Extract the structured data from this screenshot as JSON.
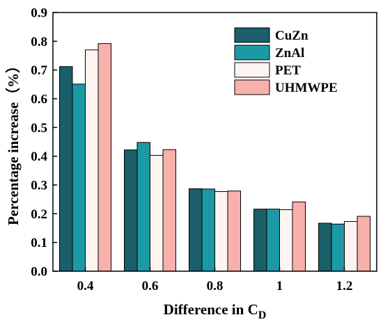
{
  "chart_data": {
    "type": "bar",
    "title": "",
    "xlabel": "Difference in C",
    "xlabel_subscript": "D",
    "ylabel": "Percentage increase（%）",
    "categories": [
      "0.4",
      "0.6",
      "0.8",
      "1",
      "1.2"
    ],
    "ylim": [
      0,
      0.9
    ],
    "yticks": [
      "0.0",
      "0.1",
      "0.2",
      "0.3",
      "0.4",
      "0.5",
      "0.6",
      "0.7",
      "0.8",
      "0.9"
    ],
    "grid": false,
    "legend_position": "top-right",
    "series": [
      {
        "name": "CuZn",
        "color": "#1a5f6a",
        "values": [
          0.712,
          0.422,
          0.287,
          0.216,
          0.167
        ]
      },
      {
        "name": "ZnAl",
        "color": "#1b9aa5",
        "values": [
          0.651,
          0.448,
          0.286,
          0.216,
          0.164
        ]
      },
      {
        "name": "PET",
        "color": "#fdf4f2",
        "values": [
          0.77,
          0.403,
          0.277,
          0.214,
          0.173
        ]
      },
      {
        "name": "UHMWPE",
        "color": "#f7b0ab",
        "values": [
          0.792,
          0.423,
          0.279,
          0.241,
          0.191
        ]
      }
    ]
  }
}
